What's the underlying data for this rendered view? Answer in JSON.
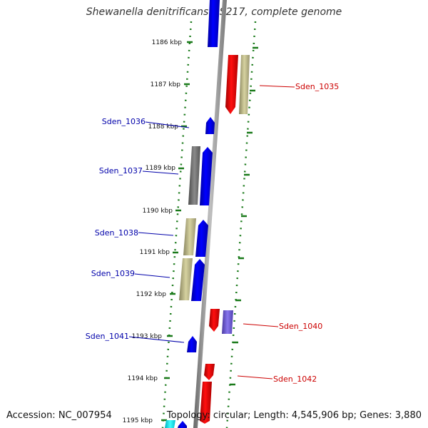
{
  "title": "Shewanella denitrificans OS217, complete genome",
  "footer": {
    "accession": "Accession: NC_007954",
    "summary": "Topology: circular; Length: 4,545,906 bp; Genes: 3,880"
  },
  "ticks": [
    "1186 kbp",
    "1187 kbp",
    "1188 kbp",
    "1189 kbp",
    "1190 kbp",
    "1191 kbp",
    "1192 kbp",
    "1193 kbp",
    "1194 kbp",
    "1195 kbp"
  ],
  "genes_left": [
    "Sden_1036",
    "Sden_1037",
    "Sden_1038",
    "Sden_1039",
    "Sden_1041"
  ],
  "genes_right": [
    "Sden_1035",
    "Sden_1040",
    "Sden_1042"
  ],
  "colors": {
    "forward_gene": "#0000ee",
    "reverse_gene": "#ee0000",
    "khaki_gene": "#b8b380",
    "gray_gene": "#6e6e6e",
    "purple_gene": "#6655cc",
    "cyan_gene": "#00e5ee",
    "backbone": "#8a8a8a",
    "tick_green": "#1a7a1a",
    "left_label": "#0000aa",
    "right_label": "#cc0000"
  }
}
